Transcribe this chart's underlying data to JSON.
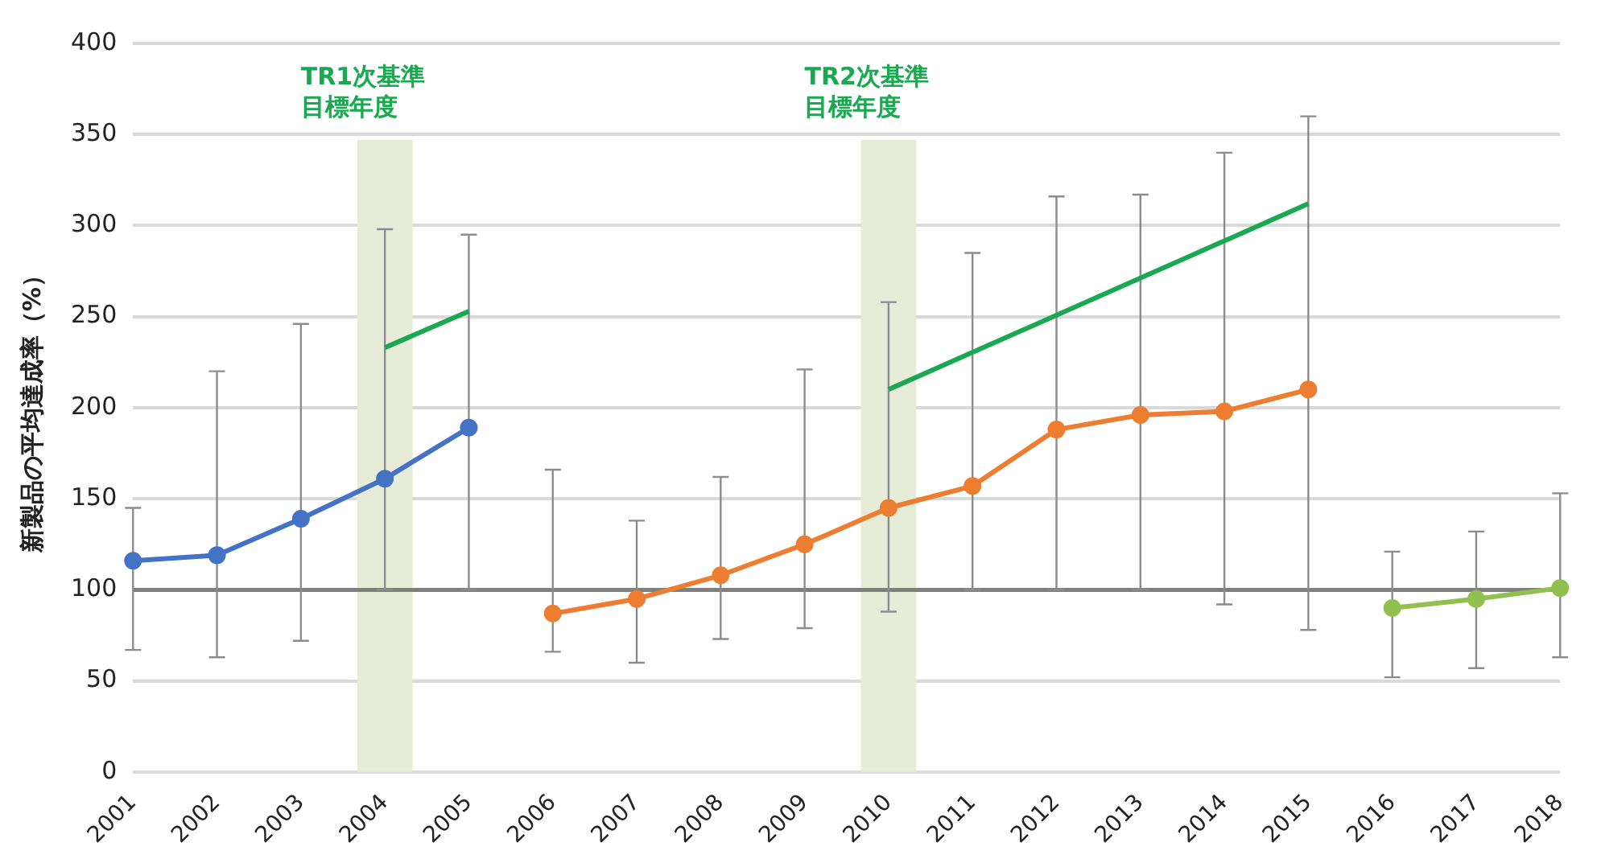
{
  "chart_data": {
    "type": "line",
    "ylabel": "新製品の平均達成率（%）",
    "categories": [
      "2001",
      "2002",
      "2003",
      "2004",
      "2005",
      "2006",
      "2007",
      "2008",
      "2009",
      "2010",
      "2011",
      "2012",
      "2013",
      "2014",
      "2015",
      "2016",
      "2017",
      "2018"
    ],
    "series": [
      {
        "color": "#4472c4",
        "values": [
          116,
          119,
          139,
          161,
          189,
          null,
          null,
          null,
          null,
          null,
          null,
          null,
          null,
          null,
          null,
          null,
          null,
          null
        ],
        "errors": [
          [
            67,
            145
          ],
          [
            63,
            220
          ],
          [
            72,
            246
          ],
          [
            100,
            298
          ],
          [
            100,
            295
          ],
          null,
          null,
          null,
          null,
          null,
          null,
          null,
          null,
          null,
          null,
          null,
          null,
          null
        ]
      },
      {
        "color": "#ed7d31",
        "values": [
          null,
          null,
          null,
          null,
          null,
          87,
          95,
          108,
          125,
          145,
          157,
          188,
          196,
          198,
          210,
          null,
          null,
          null
        ],
        "errors": [
          null,
          null,
          null,
          null,
          null,
          [
            66,
            166
          ],
          [
            60,
            138
          ],
          [
            73,
            162
          ],
          [
            79,
            221
          ],
          [
            88,
            258
          ],
          [
            100,
            285
          ],
          [
            100,
            316
          ],
          [
            100,
            317
          ],
          [
            92,
            340
          ],
          [
            78,
            360
          ],
          null,
          null,
          null
        ]
      },
      {
        "color": "#92c050",
        "values": [
          null,
          null,
          null,
          null,
          null,
          null,
          null,
          null,
          null,
          null,
          null,
          null,
          null,
          null,
          null,
          90,
          95,
          101
        ],
        "errors": [
          null,
          null,
          null,
          null,
          null,
          null,
          null,
          null,
          null,
          null,
          null,
          null,
          null,
          null,
          null,
          [
            52,
            121
          ],
          [
            57,
            132
          ],
          [
            63,
            153
          ]
        ]
      },
      {
        "color": "#1aa851",
        "marker": "none",
        "values": [
          null,
          null,
          null,
          233,
          253,
          null,
          null,
          null,
          null,
          null,
          null,
          null,
          null,
          null,
          null,
          null,
          null,
          null
        ]
      },
      {
        "color": "#1aa851",
        "marker": "none",
        "values": [
          null,
          null,
          null,
          null,
          null,
          null,
          null,
          null,
          null,
          210,
          null,
          null,
          null,
          null,
          312,
          null,
          null,
          null
        ]
      }
    ],
    "ylim": [
      0,
      400
    ],
    "yticks": [
      0,
      50,
      100,
      150,
      200,
      250,
      300,
      350,
      400
    ],
    "grid": "y",
    "legend": false,
    "marker": "circle",
    "line_style": "solid",
    "ref_lines": [
      {
        "axis": "y",
        "value": 100,
        "color": "#7f7f7f"
      }
    ],
    "bands": [
      {
        "axis": "x",
        "from": "2004",
        "to": "2004",
        "label": "TR1次基準目標年度",
        "color": "#e6ecd8"
      },
      {
        "axis": "x",
        "from": "2010",
        "to": "2010",
        "label": "TR2次基準目標年度",
        "color": "#e6ecd8"
      }
    ]
  }
}
